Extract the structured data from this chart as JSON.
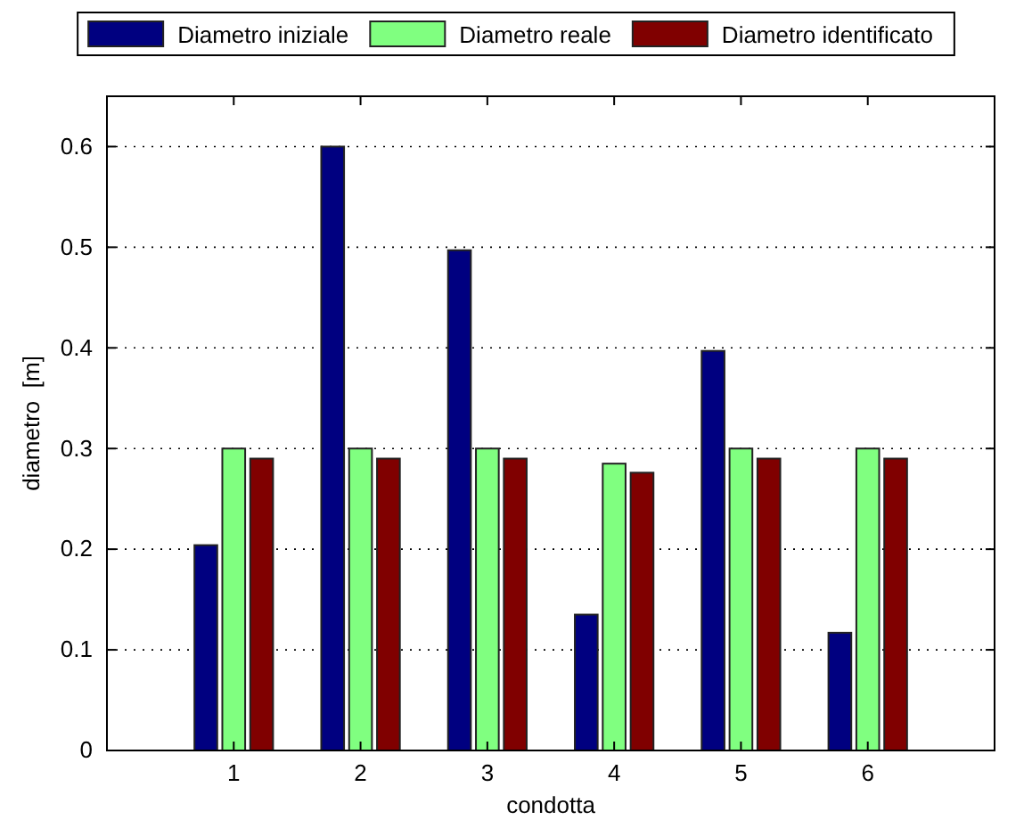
{
  "chart_data": {
    "type": "bar",
    "xlabel": "condotta",
    "ylabel": "diametro  [m]",
    "x": [
      1,
      2,
      3,
      4,
      5,
      6
    ],
    "xlim": [
      0,
      7
    ],
    "xticks": [
      1,
      2,
      3,
      4,
      5,
      6
    ],
    "ylim": [
      0,
      0.65
    ],
    "yticks": [
      0,
      0.1,
      0.2,
      0.3,
      0.4,
      0.5,
      0.6
    ],
    "grid": "y",
    "legend": "top",
    "series": [
      {
        "name": "Diametro iniziale",
        "color": "#000080",
        "values": [
          0.204,
          0.6,
          0.497,
          0.135,
          0.397,
          0.117
        ]
      },
      {
        "name": "Diametro reale",
        "color": "#80ff80",
        "values": [
          0.3,
          0.3,
          0.3,
          0.285,
          0.3,
          0.3
        ]
      },
      {
        "name": "Diametro identificato",
        "color": "#800000",
        "values": [
          0.29,
          0.29,
          0.29,
          0.276,
          0.29,
          0.29
        ]
      }
    ]
  }
}
